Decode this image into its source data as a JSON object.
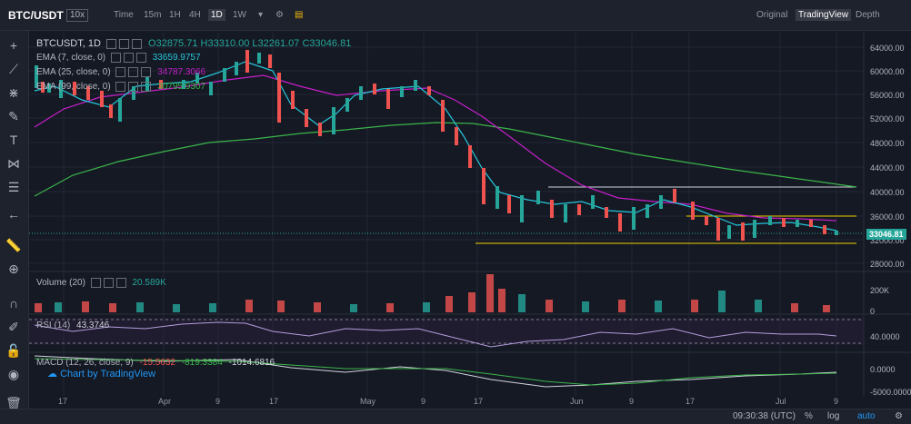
{
  "header": {
    "symbol": "BTC/USDT",
    "leverage": "10x",
    "intervals": [
      "Time",
      "15m",
      "1H",
      "4H",
      "1D",
      "1W"
    ],
    "active_interval": "1D",
    "views": [
      "Original",
      "TradingView",
      "Depth"
    ],
    "active_view": "TradingView"
  },
  "ohlc": {
    "title": "BTCUSDT, 1D",
    "open": "O32875.71",
    "high": "H33310.00",
    "low": "L32261.07",
    "close": "C33046.81"
  },
  "indicators": {
    "ema7": {
      "label": "EMA (7, close, 0)",
      "value": "33659.9757",
      "color": "#26c6da"
    },
    "ema25": {
      "label": "EMA (25, close, 0)",
      "value": "34787.3066",
      "color": "#c51fc9"
    },
    "ema99": {
      "label": "EMA (99, close, 0)",
      "value": "30795.9307",
      "color": "#3bb54a"
    },
    "volume": {
      "label": "Volume (20)",
      "value": "20.589K"
    },
    "rsi": {
      "label": "RSI (14)",
      "value": "43.3746"
    },
    "macd": {
      "label": "MACD (12, 26, close, 9)",
      "v1": "-15.5632",
      "v2": "-819.3384",
      "v3": "-1014.6816"
    }
  },
  "branding": "Chart by TradingView",
  "price_axis": [
    "64000.00",
    "60000.00",
    "56000.00",
    "52000.00",
    "48000.00",
    "44000.00",
    "40000.00",
    "36000.00",
    "32000.00",
    "28000.00"
  ],
  "current_price": "33046.81",
  "volume_axis": [
    "200K",
    "0"
  ],
  "rsi_axis": "40.0000",
  "macd_axis": [
    "0.0000",
    "-5000.0000"
  ],
  "dates": [
    "17",
    "Apr",
    "9",
    "17",
    "May",
    "9",
    "17",
    "Jun",
    "9",
    "17",
    "Jul",
    "9"
  ],
  "footer": {
    "time": "09:30:38 (UTC)",
    "pct": "%",
    "log": "log",
    "auto": "auto"
  },
  "colors": {
    "up": "#26a69a",
    "down": "#ef5350",
    "bg": "#151924"
  }
}
